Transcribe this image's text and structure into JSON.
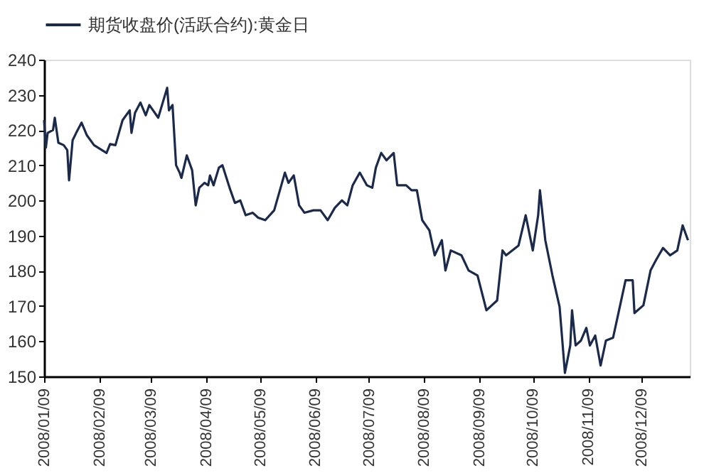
{
  "chart_data": {
    "type": "line",
    "x": [
      "2008-01-09",
      "2008-01-10",
      "2008-01-11",
      "2008-01-14",
      "2008-01-15",
      "2008-01-17",
      "2008-01-20",
      "2008-01-22",
      "2008-01-23",
      "2008-01-25",
      "2008-01-27",
      "2008-01-30",
      "2008-02-02",
      "2008-02-06",
      "2008-02-13",
      "2008-02-15",
      "2008-02-18",
      "2008-02-22",
      "2008-02-24",
      "2008-02-26",
      "2008-02-27",
      "2008-02-29",
      "2008-03-03",
      "2008-03-06",
      "2008-03-08",
      "2008-03-13",
      "2008-03-18",
      "2008-03-19",
      "2008-03-21",
      "2008-03-23",
      "2008-03-25",
      "2008-03-26",
      "2008-03-29",
      "2008-04-01",
      "2008-04-03",
      "2008-04-05",
      "2008-04-08",
      "2008-04-10",
      "2008-04-11",
      "2008-04-13",
      "2008-04-16",
      "2008-04-18",
      "2008-04-22",
      "2008-04-25",
      "2008-04-28",
      "2008-05-01",
      "2008-05-05",
      "2008-05-08",
      "2008-05-12",
      "2008-05-17",
      "2008-05-21",
      "2008-05-23",
      "2008-05-25",
      "2008-05-28",
      "2008-05-31",
      "2008-06-03",
      "2008-06-08",
      "2008-06-12",
      "2008-06-16",
      "2008-06-20",
      "2008-06-24",
      "2008-06-27",
      "2008-06-30",
      "2008-07-04",
      "2008-07-08",
      "2008-07-11",
      "2008-07-13",
      "2008-07-16",
      "2008-07-19",
      "2008-07-23",
      "2008-07-25",
      "2008-07-30",
      "2008-08-02",
      "2008-08-05",
      "2008-08-08",
      "2008-08-12",
      "2008-08-15",
      "2008-08-19",
      "2008-08-21",
      "2008-08-24",
      "2008-08-30",
      "2008-09-03",
      "2008-09-08",
      "2008-09-13",
      "2008-09-19",
      "2008-09-22",
      "2008-09-24",
      "2008-10-01",
      "2008-10-05",
      "2008-10-09",
      "2008-10-12",
      "2008-10-13",
      "2008-10-16",
      "2008-10-20",
      "2008-10-24",
      "2008-10-27",
      "2008-10-30",
      "2008-10-31",
      "2008-11-02",
      "2008-11-05",
      "2008-11-08",
      "2008-11-10",
      "2008-11-13",
      "2008-11-16",
      "2008-11-19",
      "2008-11-23",
      "2008-11-26",
      "2008-11-30",
      "2008-12-04",
      "2008-12-05",
      "2008-12-10",
      "2008-12-14",
      "2008-12-17",
      "2008-12-21",
      "2008-12-25",
      "2008-12-29",
      "2009-01-01",
      "2009-01-04"
    ],
    "series": [
      {
        "name": "期货收盘价(活跃合约):黄金日",
        "color": "#1b2a4a",
        "values": [
          222.8,
          215,
          219.2,
          220,
          223.5,
          216.4,
          215.7,
          214.3,
          205.7,
          217.1,
          219.2,
          222.1,
          218.5,
          215.7,
          213.5,
          216,
          215.7,
          222.8,
          224.2,
          225.6,
          219.2,
          224.9,
          227.8,
          224.2,
          227.1,
          223.5,
          232,
          225.6,
          227.1,
          210,
          207.9,
          206.4,
          212.8,
          208.6,
          198.6,
          203.6,
          205,
          204.3,
          207.1,
          204.3,
          209.3,
          210,
          203.6,
          199.3,
          200,
          195.8,
          196.5,
          195.1,
          194.4,
          197.2,
          204.3,
          207.9,
          205,
          207.1,
          198.6,
          196.5,
          197.2,
          197.2,
          194.4,
          197.9,
          200,
          198.6,
          204.3,
          207.9,
          204.3,
          203.6,
          209.3,
          213.5,
          211.4,
          213.5,
          204.3,
          204.3,
          202.9,
          202.9,
          194.4,
          191.5,
          184.4,
          188.7,
          180.1,
          185.8,
          184.4,
          180.1,
          178.7,
          168.8,
          171.6,
          185.8,
          184.4,
          187.2,
          195.8,
          185.8,
          195.8,
          202.9,
          188.7,
          178.7,
          169.8,
          151,
          158.8,
          168.8,
          158.8,
          160.2,
          163.8,
          158.8,
          161.6,
          153.1,
          160.2,
          161,
          168,
          177.3,
          177.3,
          168,
          170.2,
          180.1,
          183,
          186.5,
          184.4,
          185.8,
          192.9,
          188.7
        ]
      }
    ],
    "xlim": [
      "2008-01-09",
      "2009-01-05"
    ],
    "xticks": [
      {
        "value": "2008-01-09",
        "label": "2008/01/09"
      },
      {
        "value": "2008-02-09",
        "label": "2008/02/09"
      },
      {
        "value": "2008-03-09",
        "label": "2008/03/09"
      },
      {
        "value": "2008-04-09",
        "label": "2008/04/09"
      },
      {
        "value": "2008-05-09",
        "label": "2008/05/09"
      },
      {
        "value": "2008-06-09",
        "label": "2008/06/09"
      },
      {
        "value": "2008-07-09",
        "label": "2008/07/09"
      },
      {
        "value": "2008-08-09",
        "label": "2008/08/09"
      },
      {
        "value": "2008-09-09",
        "label": "2008/09/09"
      },
      {
        "value": "2008-10-09",
        "label": "2008/10/09"
      },
      {
        "value": "2008-11-09",
        "label": "2008/11/09"
      },
      {
        "value": "2008-12-09",
        "label": "2008/12/09"
      }
    ],
    "ylim": [
      150,
      240
    ],
    "yticks": [
      150,
      160,
      170,
      180,
      190,
      200,
      210,
      220,
      230,
      240
    ],
    "grid": false,
    "legend": "top",
    "line_style": "solid",
    "marker": "none"
  }
}
